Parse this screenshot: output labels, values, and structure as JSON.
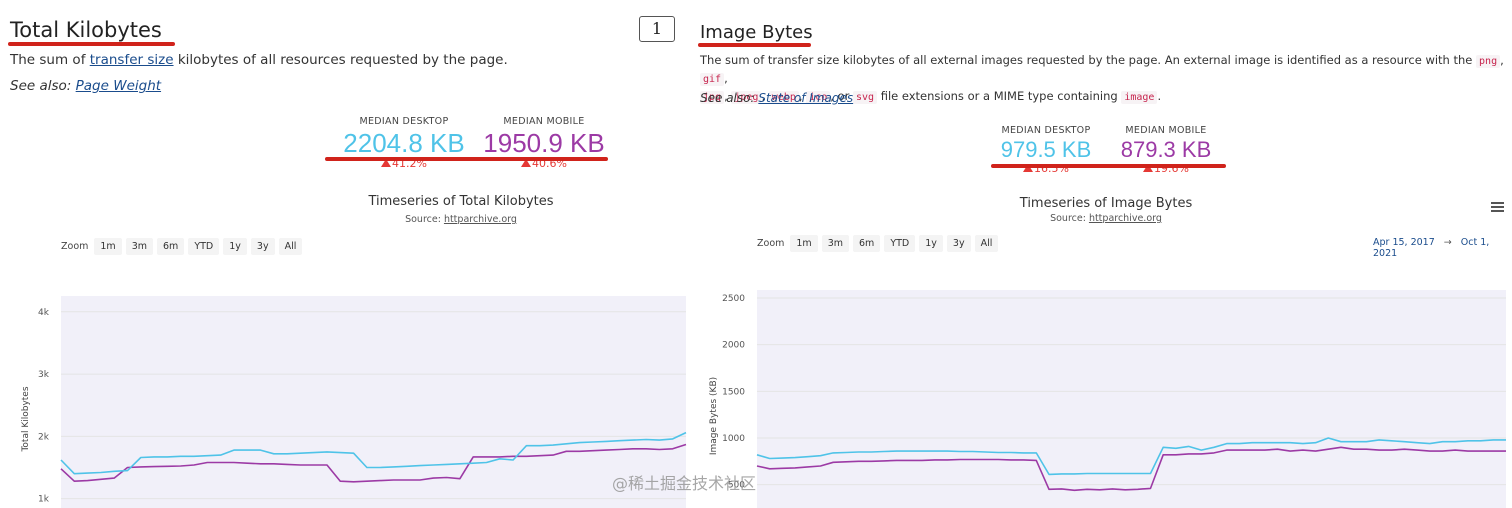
{
  "left": {
    "title": "Total Kilobytes",
    "desc_prefix": "The sum of ",
    "desc_link": "transfer size",
    "desc_suffix": " kilobytes of all resources requested by the page.",
    "see_also_label": "See also: ",
    "see_also_link": "Page Weight",
    "median_desktop_label": "MEDIAN DESKTOP",
    "median_desktop_value": "2204.8 KB",
    "median_desktop_change": "41.2%",
    "median_mobile_label": "MEDIAN MOBILE",
    "median_mobile_value": "1950.9 KB",
    "median_mobile_change": "40.6%",
    "chart_title": "Timeseries of Total Kilobytes",
    "source_label": "Source: ",
    "source_link": "httparchive.org",
    "zoom_label": "Zoom",
    "zoom_buttons": [
      "1m",
      "3m",
      "6m",
      "YTD",
      "1y",
      "3y",
      "All"
    ],
    "page_badge": "1"
  },
  "right": {
    "title": "Image Bytes",
    "desc_1": "The sum of transfer size kilobytes of all external images requested by the page. An external image is identified as a resource with the ",
    "ext_png": "png",
    "ext_gif": "gif",
    "ext_jpg": "jpg",
    "ext_jpeg": "jpeg",
    "ext_webp": "webp",
    "ext_ico": "ico",
    "ext_svg": "svg",
    "desc_or": "or",
    "desc_2": "file extensions or a MIME type containing",
    "mime_image": "image",
    "see_also_label": "See also: ",
    "see_also_link": "State of Images",
    "median_desktop_label": "MEDIAN DESKTOP",
    "median_desktop_value": "979.5 KB",
    "median_desktop_change": "16.5%",
    "median_mobile_label": "MEDIAN MOBILE",
    "median_mobile_value": "879.3 KB",
    "median_mobile_change": "19.6%",
    "chart_title": "Timeseries of Image Bytes",
    "source_label": "Source: ",
    "source_link": "httparchive.org",
    "zoom_label": "Zoom",
    "zoom_buttons": [
      "1m",
      "3m",
      "6m",
      "YTD",
      "1y",
      "3y",
      "All"
    ],
    "range_from": "Apr 15, 2017",
    "range_arrow": "→",
    "range_to": "Oct 1, 2021"
  },
  "colors": {
    "desktop": "#4fc3e8",
    "mobile": "#9c3aa5",
    "underline": "#d0231b",
    "increase": "#e53935"
  },
  "watermark": "@稀土掘金技术社区",
  "chart_data": [
    {
      "type": "line",
      "title": "Timeseries of Total Kilobytes",
      "ylabel": "Total Kilobytes",
      "ylim": [
        850,
        4350
      ],
      "yticks": [
        1000,
        2000,
        3000,
        4000
      ],
      "ytick_labels": [
        "1k",
        "2k",
        "3k",
        "4k"
      ],
      "grid": true,
      "series": [
        {
          "values": [
            1480,
            1280,
            1290,
            1310,
            1330,
            1500,
            1510,
            1515,
            1520,
            1525,
            1540,
            1580,
            1580,
            1580,
            1570,
            1560,
            1560,
            1550,
            1540,
            1540,
            1540,
            1280,
            1270,
            1280,
            1290,
            1300,
            1300,
            1300,
            1330,
            1340,
            1320,
            1670,
            1670,
            1670,
            1680,
            1680,
            1690,
            1700,
            1760,
            1760,
            1770,
            1780,
            1790,
            1800,
            1800,
            1790,
            1800,
            1870
          ]
        },
        {
          "values": [
            1620,
            1400,
            1410,
            1420,
            1440,
            1450,
            1660,
            1670,
            1670,
            1680,
            1680,
            1690,
            1700,
            1780,
            1780,
            1780,
            1720,
            1720,
            1730,
            1740,
            1750,
            1740,
            1730,
            1500,
            1500,
            1510,
            1520,
            1530,
            1540,
            1550,
            1560,
            1570,
            1580,
            1640,
            1620,
            1850,
            1850,
            1860,
            1880,
            1900,
            1910,
            1920,
            1930,
            1940,
            1950,
            1940,
            1960,
            2060
          ]
        }
      ]
    },
    {
      "type": "line",
      "title": "Timeseries of Image Bytes",
      "ylabel": "Image Bytes (KB)",
      "ylim": [
        250,
        2650
      ],
      "yticks": [
        500,
        1000,
        1500,
        2000,
        2500
      ],
      "grid": true,
      "series": [
        {
          "values": [
            700,
            670,
            675,
            680,
            690,
            700,
            740,
            745,
            750,
            750,
            755,
            760,
            760,
            760,
            765,
            765,
            770,
            770,
            770,
            770,
            765,
            765,
            760,
            450,
            455,
            440,
            450,
            445,
            455,
            445,
            450,
            460,
            820,
            820,
            830,
            830,
            840,
            870,
            870,
            870,
            870,
            880,
            860,
            870,
            860,
            880,
            900,
            880,
            880,
            870,
            870,
            880,
            870,
            860,
            860,
            870,
            860,
            860,
            860,
            860
          ]
        },
        {
          "values": [
            820,
            780,
            785,
            790,
            800,
            810,
            840,
            845,
            850,
            850,
            855,
            860,
            860,
            860,
            860,
            860,
            855,
            855,
            850,
            845,
            845,
            840,
            840,
            610,
            615,
            615,
            620,
            620,
            620,
            620,
            620,
            620,
            900,
            890,
            910,
            870,
            900,
            940,
            940,
            950,
            950,
            950,
            950,
            940,
            950,
            1000,
            960,
            960,
            960,
            980,
            970,
            960,
            950,
            940,
            960,
            960,
            970,
            970,
            980,
            980
          ]
        }
      ]
    }
  ]
}
